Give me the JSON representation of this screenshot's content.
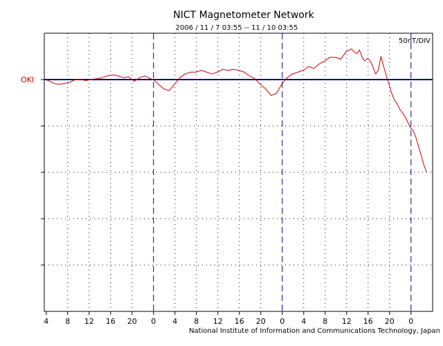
{
  "chart_data": {
    "type": "line",
    "title": "NICT Magnetometer Network",
    "subtitle": "2006 / 11 / 7   03:55 -- 11 / 10   03:55",
    "scale_label": "50nT/DIV",
    "station_label": "OKI",
    "footer": "National Institute of Information and Communications Technology, Japan",
    "x_tick_labels": [
      "4",
      "8",
      "12",
      "16",
      "20",
      "0",
      "4",
      "8",
      "12",
      "16",
      "20",
      "0",
      "4",
      "8",
      "12",
      "16",
      "20",
      "0"
    ],
    "x_unit": "hours since 2006-11-07 03:55",
    "xlim": [
      0,
      72
    ],
    "ylim": [
      -250,
      50
    ],
    "y_unit": "nT",
    "grid": true,
    "colors": {
      "series": "#cc0000",
      "baseline": "#00008b",
      "day_divider": "#00008b",
      "station_label": "#cc0000"
    },
    "series": [
      {
        "name": "OKI",
        "x": [
          0,
          0.8,
          1.5,
          2.5,
          3.5,
          4.5,
          5.5,
          6.5,
          7.5,
          8.5,
          9.5,
          10.5,
          11.5,
          12.5,
          13.5,
          14.5,
          15.5,
          16.5,
          17.5,
          18.5,
          19.5,
          20.1,
          21,
          22,
          23,
          24,
          25,
          26,
          27,
          28,
          29,
          30,
          31,
          32,
          33,
          34,
          35,
          36,
          37,
          38,
          39,
          40,
          41,
          42,
          43,
          44,
          45,
          46,
          47,
          48,
          49,
          50,
          51,
          52,
          53,
          54,
          55,
          56,
          57,
          57.5,
          58,
          58.5,
          59,
          59.5,
          60,
          60.5,
          61,
          61.5,
          62,
          62.5,
          63,
          63.5,
          64,
          64.5,
          65,
          65.5,
          66,
          66.5,
          67,
          67.5,
          68,
          68.5,
          69,
          69.5,
          70,
          70.5,
          71
        ],
        "y": [
          0,
          -2,
          -4,
          -5,
          -4,
          -3,
          0,
          0,
          -1,
          0,
          1,
          2,
          4,
          5,
          4,
          2,
          3,
          -2,
          2,
          4,
          1,
          0,
          -5,
          -10,
          -12,
          -5,
          2,
          6,
          8,
          8,
          10,
          8,
          6,
          8,
          11,
          10,
          11,
          10,
          8,
          4,
          1,
          -5,
          -10,
          -17,
          -15,
          -5,
          2,
          6,
          8,
          10,
          14,
          12,
          17,
          20,
          24,
          24,
          22,
          30,
          33,
          30,
          28,
          32,
          24,
          20,
          23,
          20,
          14,
          6,
          10,
          25,
          14,
          4,
          -5,
          -15,
          -22,
          -26,
          -32,
          -36,
          -40,
          -46,
          -52,
          -55,
          -62,
          -72,
          -82,
          -92,
          -100
        ]
      },
      {
        "name": "",
        "x": [
          0,
          72
        ],
        "y": [
          0,
          0
        ]
      }
    ]
  }
}
